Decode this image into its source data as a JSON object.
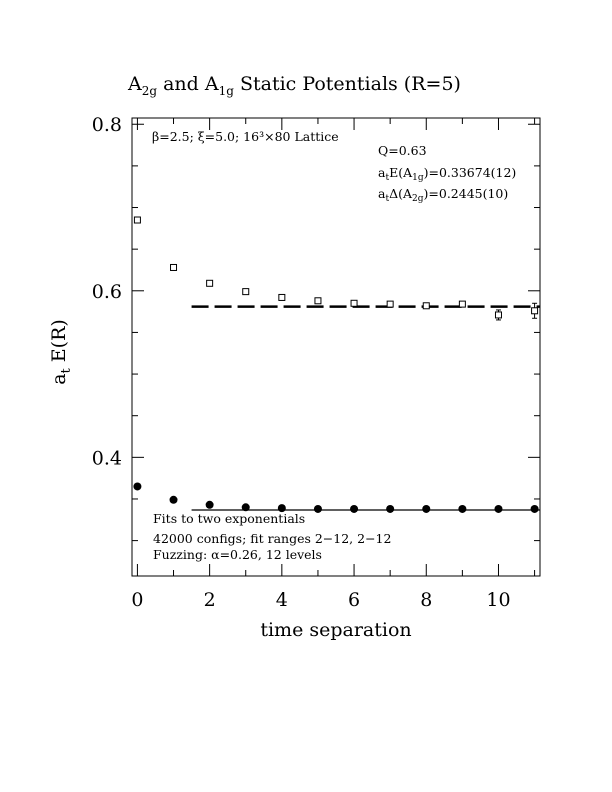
{
  "chart_data": {
    "type": "scatter",
    "title": {
      "prefix": "A",
      "sub1": "2g",
      "middle": " and A",
      "sub2": "1g",
      "suffix": " Static Potentials (R=5)"
    },
    "xlabel": "time separation",
    "ylabel": {
      "main": "a",
      "sub": "t",
      "rest": " E(R)"
    },
    "xlim": [
      -0.15,
      11.15
    ],
    "ylim": [
      0.2575,
      0.8075
    ],
    "x_ticks": [
      0,
      2,
      4,
      6,
      8,
      10
    ],
    "x_tick_labels": [
      "0",
      "2",
      "4",
      "6",
      "8",
      "10"
    ],
    "y_ticks": [
      0.4,
      0.6,
      0.8
    ],
    "y_tick_labels": [
      "0.4",
      "0.6",
      "0.8"
    ],
    "x_minor_step": 1,
    "y_minor_step": 0.05,
    "series": [
      {
        "marker": "open-square",
        "x": [
          0,
          1,
          2,
          3,
          4,
          5,
          6,
          7,
          8,
          9,
          10,
          11
        ],
        "y": [
          0.685,
          0.628,
          0.609,
          0.599,
          0.592,
          0.588,
          0.585,
          0.584,
          0.582,
          0.584,
          0.571,
          0.576
        ],
        "err": [
          0.001,
          0.001,
          0.001,
          0.001,
          0.001,
          0.001,
          0.001,
          0.001,
          0.002,
          0.002,
          0.006,
          0.009
        ]
      },
      {
        "marker": "filled-circle",
        "x": [
          0,
          1,
          2,
          3,
          4,
          5,
          6,
          7,
          8,
          9,
          10,
          11
        ],
        "y": [
          0.365,
          0.349,
          0.343,
          0.34,
          0.339,
          0.338,
          0.338,
          0.338,
          0.338,
          0.338,
          0.338,
          0.338
        ],
        "err": [
          0,
          0,
          0,
          0,
          0,
          0,
          0,
          0,
          0,
          0,
          0,
          0
        ]
      }
    ],
    "fits": [
      {
        "style": "dashed",
        "x_range": [
          1.5,
          11.15
        ],
        "y": 0.581
      },
      {
        "style": "solid",
        "x_range": [
          1.5,
          11.15
        ],
        "y": 0.33674
      }
    ],
    "annotations": {
      "top_left": "β=2.5; ξ=5.0; 16³×80 Lattice",
      "q": "Q=0.63",
      "energy": {
        "main": "a",
        "sub1": "t",
        "mid": "E(A",
        "sub2": "1g",
        "tail": ")=0.33674(12)"
      },
      "gap": {
        "main": "a",
        "sub1": "t",
        "mid": "Δ(A",
        "sub2": "2g",
        "tail": ")=0.2445(10)"
      },
      "bottom_lines": [
        "Fits to two exponentials",
        "42000 configs; fit ranges 2−12, 2−12",
        "Fuzzing: α=0.26, 12 levels"
      ]
    }
  }
}
